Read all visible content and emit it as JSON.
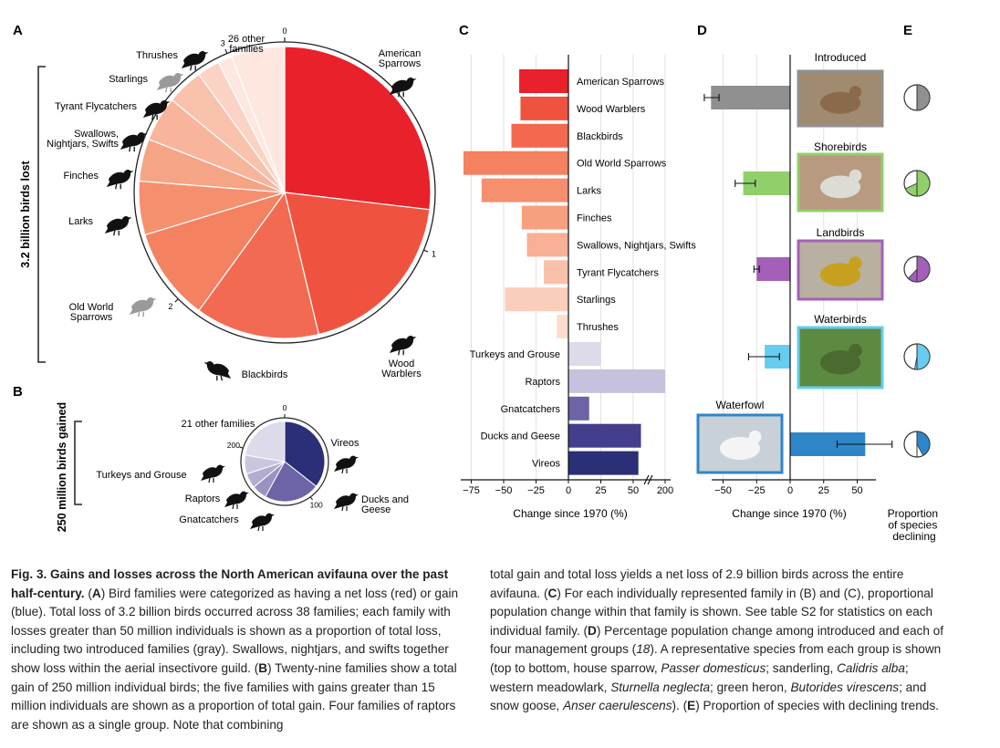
{
  "panels": {
    "A": "A",
    "B": "B",
    "C": "C",
    "D": "D",
    "E": "E"
  },
  "panelA": {
    "side_label": "3.2 billion birds lost",
    "ticks": [
      "0",
      "1",
      "2",
      "3"
    ],
    "colors": [
      "#e8212b",
      "#ef5340",
      "#f26a52",
      "#f4815f",
      "#f5906f",
      "#f6a486",
      "#f8b59c",
      "#f9c2ad",
      "#fad3c4",
      "#fde7df"
    ],
    "families": [
      {
        "label": "American\nSparrows",
        "icon": "sparrow-icon"
      },
      {
        "label": "Wood\nWarblers",
        "icon": "warbler-icon"
      },
      {
        "label": "Blackbirds",
        "icon": "blackbird-icon"
      },
      {
        "label": "Old World\nSparrows",
        "icon": "house-sparrow-icon"
      },
      {
        "label": "Larks",
        "icon": "lark-icon"
      },
      {
        "label": "Finches",
        "icon": "finch-icon"
      },
      {
        "label": "Swallows,\nNightjars, Swifts",
        "icon": "swallow-icon"
      },
      {
        "label": "Tyrant Flycatchers",
        "icon": "flycatcher-icon"
      },
      {
        "label": "Starlings",
        "icon": "starling-icon"
      },
      {
        "label": "Thrushes",
        "icon": "thrush-icon"
      },
      {
        "label": "26 other\nfamilies",
        "icon": ""
      }
    ]
  },
  "panelB": {
    "side_label": "250 million birds gained",
    "ticks": [
      "0",
      "100",
      "200"
    ],
    "labels": [
      "Vireos",
      "Ducks and\nGeese",
      "Gnatcatchers",
      "Raptors",
      "Turkeys and Grouse",
      "21 other families"
    ]
  },
  "panelC": {
    "xticks": [
      "−75",
      "−50",
      "−25",
      "0",
      "25",
      "50",
      "200"
    ],
    "xlabel": "Change since 1970 (%)"
  },
  "panelD": {
    "xticks": [
      "−50",
      "−25",
      "0",
      "25",
      "50"
    ],
    "xlabel": "Change since 1970 (%)",
    "groups": [
      "Introduced",
      "Shorebirds",
      "Landbirds",
      "Waterbirds",
      "Waterfowl"
    ]
  },
  "panelE": {
    "label": "Proportion\nof species\ndeclining"
  },
  "chart_data": [
    {
      "type": "pie",
      "title": "3.2 billion birds lost",
      "scale_ticks": [
        "0",
        "1",
        "2",
        "3"
      ],
      "categories": [
        "American Sparrows",
        "Wood Warblers",
        "Blackbirds",
        "Old World Sparrows",
        "Larks",
        "Finches",
        "Swallows, Nightjars, Swifts",
        "Tyrant Flycatchers",
        "Starlings",
        "Thrushes",
        "26 other families"
      ],
      "values": [
        0.86,
        0.62,
        0.44,
        0.33,
        0.19,
        0.15,
        0.16,
        0.13,
        0.08,
        0.05,
        0.19
      ]
    },
    {
      "type": "pie",
      "title": "250 million birds gained",
      "scale_ticks": [
        "0",
        "100",
        "200"
      ],
      "categories": [
        "Vireos",
        "Ducks and Geese",
        "Gnatcatchers",
        "Raptors",
        "Turkeys and Grouse",
        "21 other families"
      ],
      "values": [
        89,
        56,
        15,
        15,
        19,
        56
      ]
    },
    {
      "type": "bar",
      "orientation": "horizontal",
      "categories": [
        "American Sparrows",
        "Wood Warblers",
        "Blackbirds",
        "Old World Sparrows",
        "Larks",
        "Finches",
        "Swallows, Nightjars, Swifts",
        "Tyrant Flycatchers",
        "Starlings",
        "Thrushes",
        "Turkeys and Grouse",
        "Raptors",
        "Gnatcatchers",
        "Ducks and Geese",
        "Vireos"
      ],
      "values": [
        -38,
        -37,
        -44,
        -81,
        -67,
        -36,
        -32,
        -19,
        -49,
        -9,
        25,
        200,
        16,
        56,
        54
      ],
      "xlabel": "Change since 1970 (%)",
      "xticks": [
        "−75",
        "−50",
        "−25",
        "0",
        "25",
        "50",
        "200"
      ],
      "axis_break": true
    },
    {
      "type": "bar",
      "orientation": "horizontal",
      "categories": [
        "Introduced",
        "Shorebirds",
        "Landbirds",
        "Waterbirds",
        "Waterfowl"
      ],
      "values": [
        -59,
        -35,
        -25,
        -19,
        56
      ],
      "error": [
        [
          -64,
          -53
        ],
        [
          -41,
          -26
        ],
        [
          -27,
          -23
        ],
        [
          -31,
          -8
        ],
        [
          35,
          76
        ]
      ],
      "colors": [
        "#909090",
        "#90d06a",
        "#a460b8",
        "#66ccf0",
        "#2e86c8"
      ],
      "xlabel": "Change since 1970 (%)",
      "xlim": [
        -70,
        80
      ]
    },
    {
      "type": "pie",
      "title": "Proportion of species declining",
      "categories": [
        "Introduced",
        "Shorebirds",
        "Landbirds",
        "Waterbirds",
        "Waterfowl"
      ],
      "values": [
        0.5,
        0.68,
        0.62,
        0.53,
        0.42
      ]
    }
  ],
  "caption": {
    "title": "Fig. 3. Gains and losses across the North American avifauna over the past half-century.",
    "left": [
      {
        "t": "Fig. 3. Gains and losses across the North American avifauna over the past half-century.",
        "b": true
      },
      {
        "t": " ("
      },
      {
        "t": "A",
        "b": true
      },
      {
        "t": ") Bird families were categorized as having a net loss (red) or gain (blue). Total loss of 3.2 billion birds occurred across 38 families; each family with losses greater than 50 million individuals is shown as a proportion of total loss, including two introduced families (gray). Swallows, nightjars, and swifts together show loss within the aerial insectivore guild. ("
      },
      {
        "t": "B",
        "b": true
      },
      {
        "t": ") Twenty-nine families show a total gain of 250 million individual birds; the five families with gains greater than 15 million individuals are shown as a proportion of total gain. Four families of raptors are shown as a single group. Note that combining"
      }
    ],
    "right": [
      {
        "t": "total gain and total loss yields a net loss of 2.9 billion birds across the entire avifauna. ("
      },
      {
        "t": "C",
        "b": true
      },
      {
        "t": ") For each individually represented family in (B) and (C), proportional population change within that family is shown. See table S2 for statistics on each individual family. ("
      },
      {
        "t": "D",
        "b": true
      },
      {
        "t": ") Percentage population change among introduced and each of four management groups ("
      },
      {
        "t": "18",
        "i": true
      },
      {
        "t": "). A representative species from each group is shown (top to bottom, house sparrow, "
      },
      {
        "t": "Passer domesticus",
        "i": true
      },
      {
        "t": "; sanderling, "
      },
      {
        "t": "Calidris alba",
        "i": true
      },
      {
        "t": "; western meadowlark, "
      },
      {
        "t": "Sturnella neglecta",
        "i": true
      },
      {
        "t": "; green heron, "
      },
      {
        "t": "Butorides virescens",
        "i": true
      },
      {
        "t": "; and snow goose, "
      },
      {
        "t": "Anser caerulescens",
        "i": true
      },
      {
        "t": "). ("
      },
      {
        "t": "E",
        "b": true
      },
      {
        "t": ") Proportion of species with declining trends."
      }
    ]
  }
}
